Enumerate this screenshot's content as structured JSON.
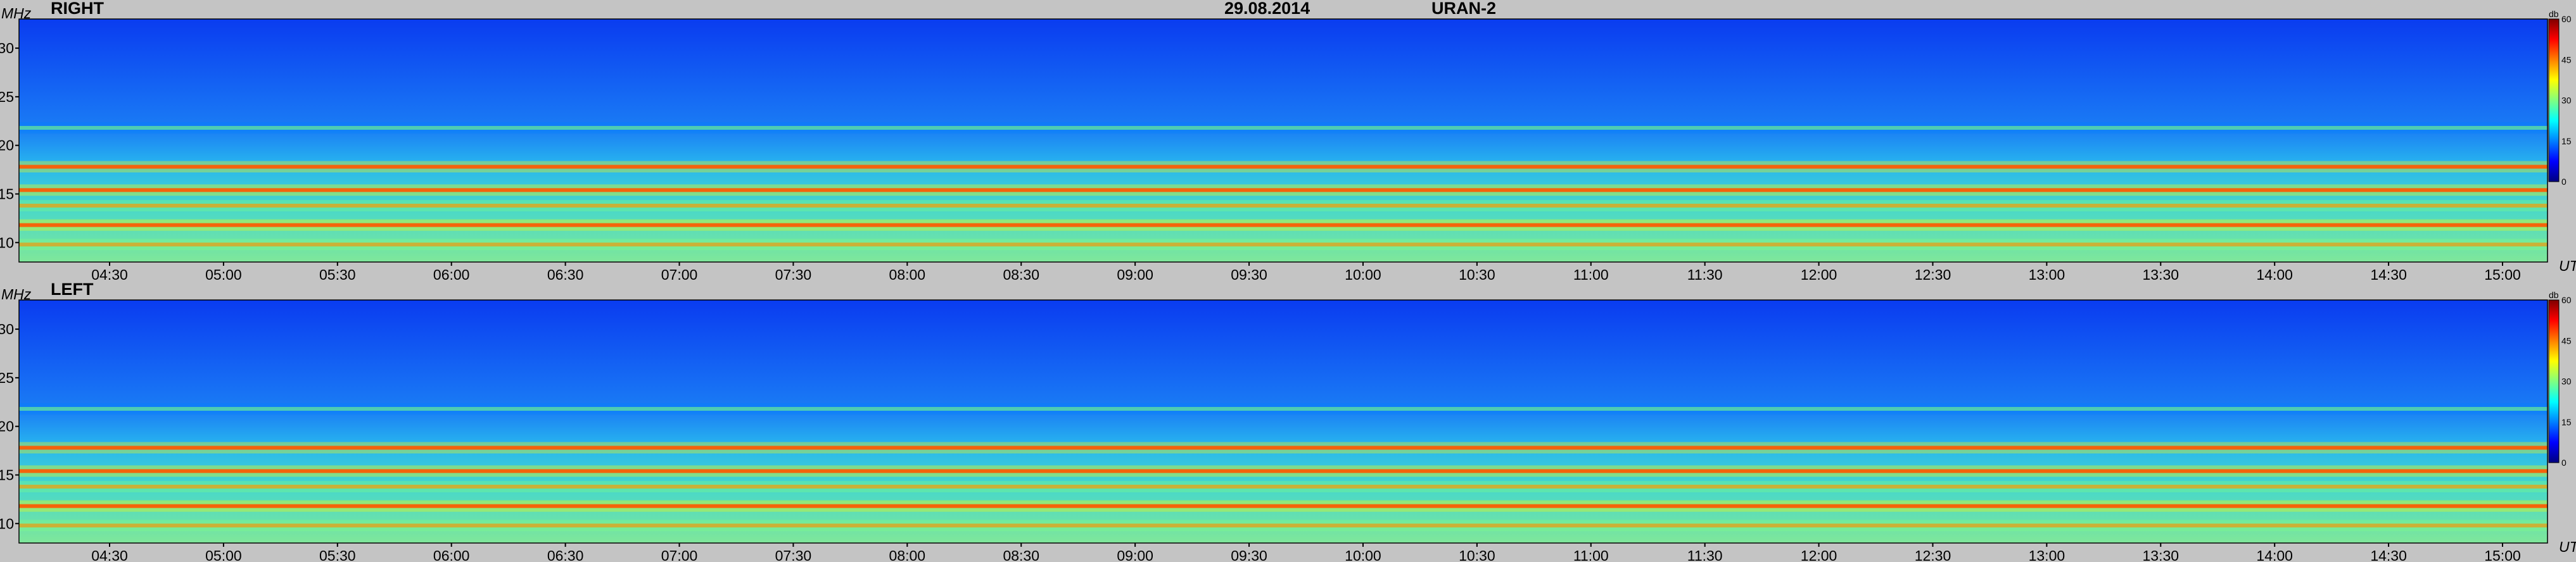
{
  "header": {
    "date": "29.08.2014",
    "instrument": "URAN-2"
  },
  "chart_data": [
    {
      "type": "heatmap",
      "title": "RIGHT",
      "ylabel": "MHz",
      "xlabel": "UT",
      "ylim": [
        8,
        33
      ],
      "yticks": [
        "10",
        "15",
        "20",
        "25",
        "30"
      ],
      "xticks": [
        "04:30",
        "05:00",
        "05:30",
        "06:00",
        "06:30",
        "07:00",
        "07:30",
        "08:00",
        "08:30",
        "09:00",
        "09:30",
        "10:00",
        "10:30",
        "11:00",
        "11:30",
        "12:00",
        "12:30",
        "13:00",
        "13:30",
        "14:00",
        "14:30",
        "15:00"
      ],
      "colorbar": {
        "unit": "db",
        "ticks": [
          "60",
          "45",
          "30",
          "15",
          "0"
        ],
        "range": [
          0,
          60
        ]
      },
      "colormap": [
        "#00007f",
        "#0000ff",
        "#0080ff",
        "#00ffff",
        "#80ff80",
        "#ffff00",
        "#ff8000",
        "#ff0000",
        "#7f0000"
      ],
      "background_level_db": 10,
      "bands": [
        {
          "freq_mhz": 9.8,
          "level_db": 48
        },
        {
          "freq_mhz": 11.8,
          "level_db": 52
        },
        {
          "freq_mhz": 13.8,
          "level_db": 45
        },
        {
          "freq_mhz": 15.4,
          "level_db": 55
        },
        {
          "freq_mhz": 17.8,
          "level_db": 50
        },
        {
          "freq_mhz": 21.8,
          "level_db": 32
        }
      ]
    },
    {
      "type": "heatmap",
      "title": "LEFT",
      "ylabel": "MHz",
      "xlabel": "UT",
      "ylim": [
        8,
        33
      ],
      "yticks": [
        "10",
        "15",
        "20",
        "25",
        "30"
      ],
      "xticks": [
        "04:30",
        "05:00",
        "05:30",
        "06:00",
        "06:30",
        "07:00",
        "07:30",
        "08:00",
        "08:30",
        "09:00",
        "09:30",
        "10:00",
        "10:30",
        "11:00",
        "11:30",
        "12:00",
        "12:30",
        "13:00",
        "13:30",
        "14:00",
        "14:30",
        "15:00"
      ],
      "colorbar": {
        "unit": "db",
        "ticks": [
          "60",
          "45",
          "30",
          "15",
          "0"
        ],
        "range": [
          0,
          60
        ]
      },
      "colormap": [
        "#00007f",
        "#0000ff",
        "#0080ff",
        "#00ffff",
        "#80ff80",
        "#ffff00",
        "#ff8000",
        "#ff0000",
        "#7f0000"
      ],
      "background_level_db": 10,
      "bands": [
        {
          "freq_mhz": 9.8,
          "level_db": 46
        },
        {
          "freq_mhz": 11.8,
          "level_db": 50
        },
        {
          "freq_mhz": 13.8,
          "level_db": 44
        },
        {
          "freq_mhz": 15.4,
          "level_db": 54
        },
        {
          "freq_mhz": 17.8,
          "level_db": 50
        },
        {
          "freq_mhz": 21.8,
          "level_db": 30
        }
      ]
    }
  ]
}
